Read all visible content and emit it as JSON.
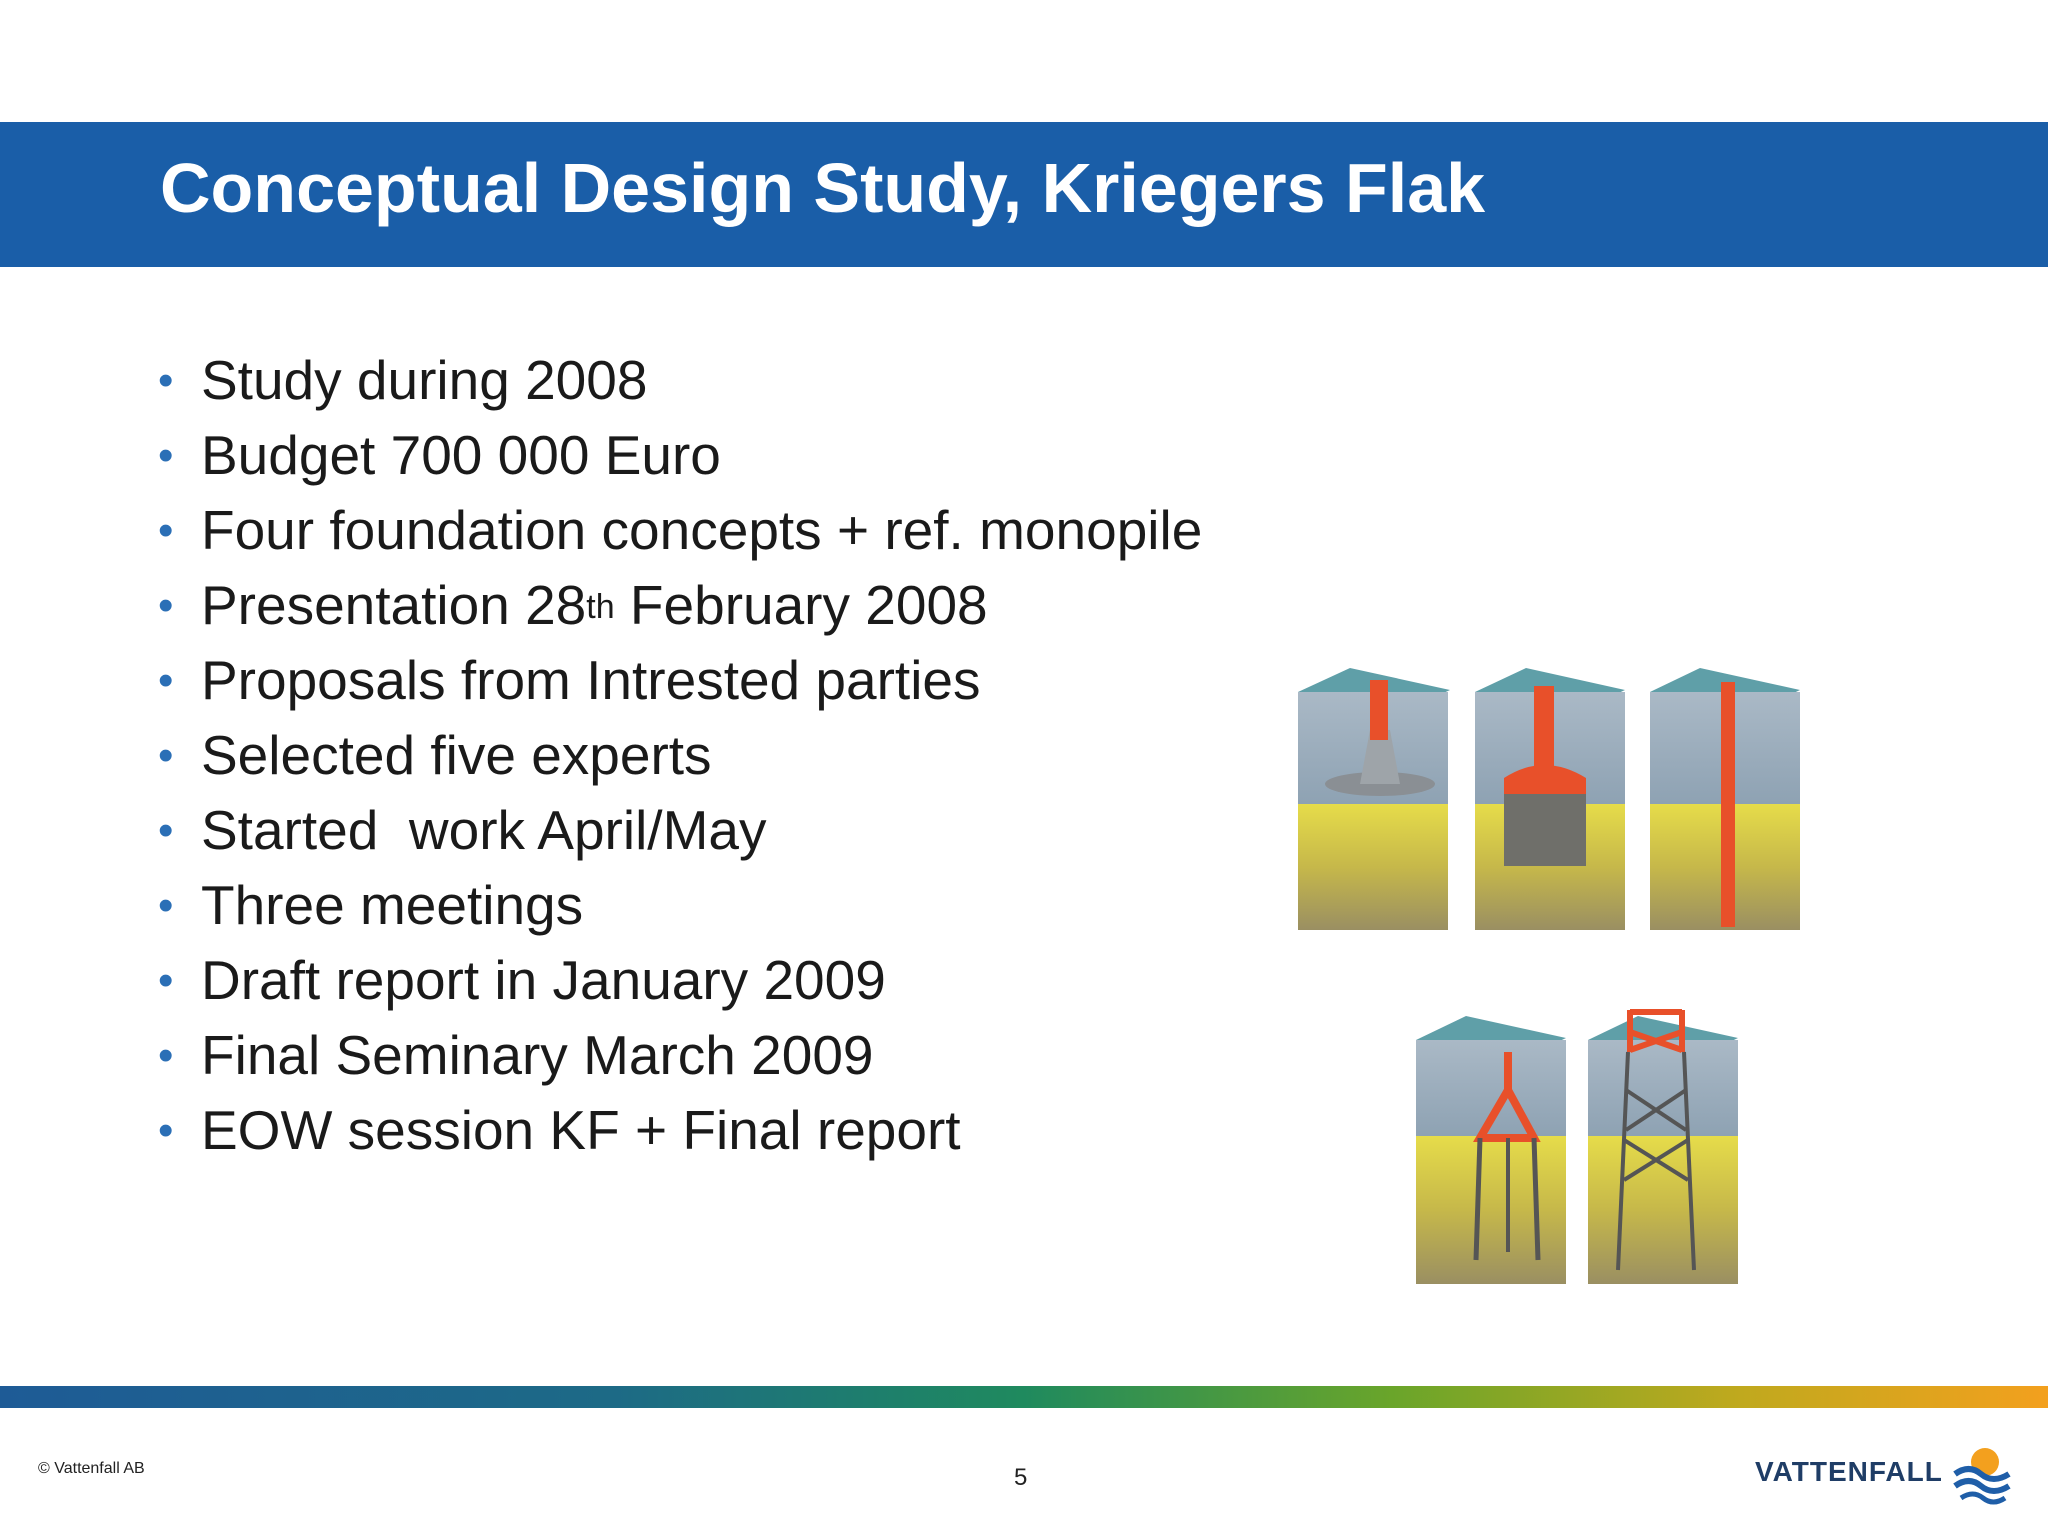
{
  "title": "Conceptual Design Study, Kriegers Flak",
  "bullets": [
    {
      "text": "Study during 2008"
    },
    {
      "text": "Budget 700 000 Euro"
    },
    {
      "text": "Four foundation concepts + ref. monopile"
    },
    {
      "text_before": "Presentation 28",
      "superscript": "th",
      "text_after": " February 2008"
    },
    {
      "text": "Proposals from Intrested parties"
    },
    {
      "text": "Selected five experts"
    },
    {
      "text": "Started  work April/May"
    },
    {
      "text": "Three meetings"
    },
    {
      "text": "Draft report in January 2009"
    },
    {
      "text": "Final Seminary March 2009"
    },
    {
      "text": "EOW session KF + Final report"
    }
  ],
  "bullet_glyph": "•",
  "footer": {
    "copyright": "© Vattenfall AB",
    "page_number": "5",
    "logo_text": "VATTENFALL"
  },
  "colors": {
    "title_band": "#1a5ea8",
    "bullet": "#2b6fb6",
    "foundation_highlight": "#e8502a"
  },
  "figures": {
    "icons": [
      "gravity-foundation-icon",
      "suction-bucket-foundation-icon",
      "monopile-foundation-icon",
      "tripod-foundation-icon",
      "jacket-foundation-icon"
    ]
  }
}
